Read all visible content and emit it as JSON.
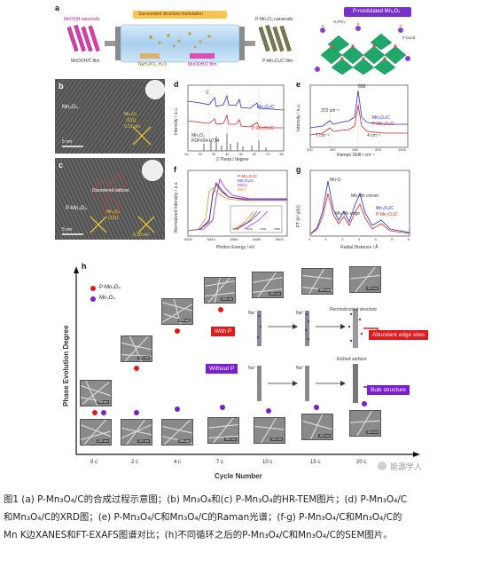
{
  "panel_labels": {
    "a": "a",
    "b": "b",
    "c": "c",
    "d": "d",
    "e": "e",
    "f": "f",
    "g": "g",
    "h": "h"
  },
  "panel_a": {
    "left_top": "MnOOH nanorods",
    "left_bottom": "MnOOH/C film",
    "tube_title": "Surrounded structure modulation",
    "tube_label1": "NaH₂PO₂·H₂O",
    "tube_label2": "MnOOH/C film",
    "right_top": "P-Mn₃O₄ nanorods",
    "right_bottom": "P-Mn₃O₄/C film",
    "box_title": "P-modulated Mn₃O₄",
    "mol_label1": "H₂PO₄⁻",
    "mol_label2": "P bond"
  },
  "panel_b": {
    "sample": "Mn₃O₄",
    "inset_text": "Mn₃O₄",
    "plane": "(211)",
    "dspacing": "0.31 nm",
    "scale": "5 nm"
  },
  "panel_c": {
    "sample": "P-Mn₃O₄",
    "disorder": "Disordered lattices",
    "inset_text": "Mn₃O₄",
    "plane": "(211)",
    "dspacing": "0.28 nm",
    "scale": "5 nm"
  },
  "panel_d": {
    "ylabel": "Intensity / a.u.",
    "xlabel": "2 Theta / degree",
    "series": [
      {
        "name": "Mn₃O₄/C",
        "color": "#1f2dd6"
      },
      {
        "name": "P-Mn₃O₄/C",
        "color": "#d61f1f"
      }
    ],
    "ref_name": "Mn₃O₄",
    "ref_pdf": "PDF#24-0734",
    "c_label": "C",
    "ticks": [
      "10",
      "20",
      "30",
      "40",
      "50",
      "60",
      "70",
      "80"
    ]
  },
  "panel_e": {
    "ylabel": "Intensity / a.u.",
    "xlabel": "Raman Shift / cm⁻¹",
    "peak_label": "658",
    "annot1": "372 cm⁻¹",
    "annot2": "7 cm⁻¹",
    "annot3": "4 cm⁻¹",
    "series": [
      {
        "name": "Mn₃O₄/C",
        "color": "#1f2dd6"
      },
      {
        "name": "P-Mn₃O₄/C",
        "color": "#d61f1f"
      }
    ],
    "ticks": [
      "200",
      "400",
      "600",
      "800",
      "1000"
    ]
  },
  "panel_f": {
    "ylabel": "Normalized Intensity / a.u.",
    "xlabel": "Photon Energy / eV",
    "legend": [
      {
        "name": "P-Mn₃O₄/C",
        "color": "#d61f1f"
      },
      {
        "name": "Mn₃O₄/C",
        "color": "#1f2dd6"
      },
      {
        "name": "MnO₂",
        "color": "#8a2be2"
      },
      {
        "name": "MnO",
        "color": "#e08a1a"
      }
    ],
    "ticks": [
      "6520",
      "6540",
      "6560",
      "6580",
      "6600"
    ],
    "inset_ticks": [
      "6540",
      "6545",
      "6550",
      "6555"
    ]
  },
  "panel_g": {
    "ylabel": "FT (k³ χ(k))",
    "xlabel": "Radial Distance / Å",
    "annot1": "Mn-O",
    "annot2": "Mn-Mn corner",
    "annot3": "Mn-Mn edge",
    "series": [
      {
        "name": "Mn₃O₄/C",
        "color": "#1f2dd6"
      },
      {
        "name": "P-Mn₃O₄/C",
        "color": "#d61f1f"
      }
    ],
    "ticks": [
      "0",
      "1",
      "2",
      "3",
      "4",
      "5",
      "6"
    ]
  },
  "panel_h": {
    "ylabel": "Phase Evolution Degree",
    "xlabel": "Cycle Number",
    "legend1": "P-Mn₃O₄",
    "legend2": "Mn₃O₄",
    "legend1_color": "#e01b1b",
    "legend2_color": "#7a1fc9",
    "cycles": [
      "0 c",
      "2 c",
      "4 c",
      "7 c",
      "10 c",
      "15 c",
      "20 c"
    ],
    "with_p": "With P",
    "without_p": "Without P",
    "na1": "Na⁺",
    "na2": "Na⁺",
    "na3": "Na⁺",
    "na4": "Na⁺",
    "reconstructed": "Reconstructed structure",
    "abundant": "Abundant edge sites",
    "etched": "Etched surface",
    "bulk": "Bulk structure",
    "scale_text": "200 nm",
    "watermark": "能源学人"
  },
  "caption": {
    "line1": "图1 (a) P-Mn₃O₄/C的合成过程示意图；(b) Mn₃O₄和(c) P-Mn₃O₄的HR-TEM图片；(d) P-Mn₃O₄/C",
    "line2": "和Mn₃O₄/C的XRD图；(e) P-Mn₃O₄/C和Mn₃O₄/C的Raman光谱；(f-g) P-Mn₃O₄/C和Mn₃O₄/C的",
    "line3": "Mn K边XANES和FT-EXAFS图谱对比；(h)不同循环之后的P-Mn₃O₄/C和Mn₃O₄/C的SEM图片。"
  }
}
